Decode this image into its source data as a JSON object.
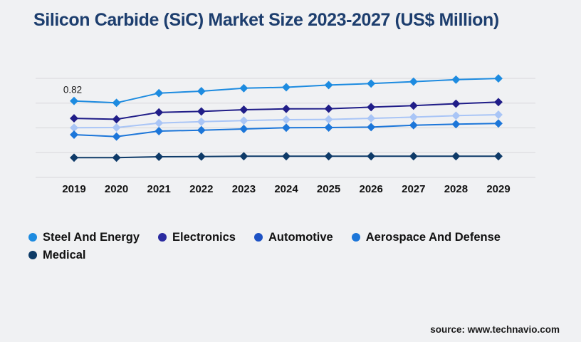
{
  "page": {
    "title": "Silicon Carbide (SiC) Market Size 2023-2027 (US$ Million)",
    "title_color": "#1d3e6e",
    "background": "#f0f1f3",
    "source": "source: www.technavio.com"
  },
  "chart_data": {
    "type": "line",
    "title": "Silicon Carbide (SiC) Market Size 2023-2027 (US$ Million)",
    "unit": "US$ Million",
    "x": [
      2019,
      2020,
      2021,
      2022,
      2023,
      2024,
      2025,
      2026,
      2027,
      2028,
      2029
    ],
    "ylim": [
      0,
      1.0625
    ],
    "gridline_count": 5,
    "grid": true,
    "grid_color": "#d8d8db",
    "marker": "diamond",
    "legend_position": "bottom",
    "axis_label_color": "#111111",
    "annotation": {
      "text": "0.82",
      "series": "Steel And Energy",
      "x": 2019,
      "color": "#1a1a1a"
    },
    "series": [
      {
        "name": "Steel And Energy",
        "line_color": "#1d8be0",
        "legend_color": "#1d8be0",
        "values": [
          0.82,
          0.8,
          0.904,
          0.925,
          0.957,
          0.967,
          0.991,
          1.007,
          1.027,
          1.049,
          1.062
        ]
      },
      {
        "name": "Electronics",
        "line_color": "#201d88",
        "legend_color": "#2b2ba0",
        "values": [
          0.634,
          0.624,
          0.698,
          0.708,
          0.726,
          0.735,
          0.737,
          0.754,
          0.77,
          0.79,
          0.808
        ]
      },
      {
        "name": "Automotive",
        "line_color": "#a9c5f6",
        "legend_color": "#1d52c4",
        "values": [
          0.533,
          0.535,
          0.583,
          0.598,
          0.609,
          0.619,
          0.622,
          0.634,
          0.647,
          0.663,
          0.673
        ]
      },
      {
        "name": "Aerospace And Defense",
        "line_color": "#1c76d9",
        "legend_color": "#1c76d9",
        "values": [
          0.459,
          0.438,
          0.497,
          0.507,
          0.52,
          0.533,
          0.535,
          0.54,
          0.56,
          0.571,
          0.579
        ]
      },
      {
        "name": "Medical",
        "line_color": "#0e3a68",
        "legend_color": "#0d3a66",
        "values": [
          0.212,
          0.212,
          0.222,
          0.224,
          0.227,
          0.227,
          0.227,
          0.227,
          0.227,
          0.227,
          0.227
        ]
      }
    ]
  }
}
